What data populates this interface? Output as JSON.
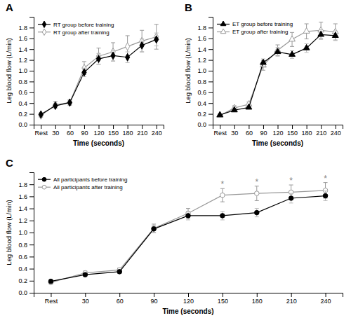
{
  "chart_data": [
    {
      "type": "line",
      "title": "A",
      "categories": [
        "Rest",
        "30",
        "60",
        "90",
        "120",
        "150",
        "180",
        "210",
        "240"
      ],
      "xlabel": "Time (seconds)",
      "ylabel": "Leg blood flow (L/min)",
      "ylim": [
        0.0,
        2.0
      ],
      "yticks": [
        {
          "value": 0,
          "label": "0.0"
        },
        0.2,
        0.4,
        0.6,
        0.8,
        {
          "value": 1,
          "label": "1.0"
        },
        1.2,
        1.4,
        1.6,
        1.8
      ],
      "grid": false,
      "legend": "upper left",
      "series": [
        {
          "name": "RT group before training",
          "color": "#000000",
          "marker": "diamond",
          "values": [
            0.19,
            0.35,
            0.41,
            0.97,
            1.22,
            1.28,
            1.25,
            1.47,
            1.58
          ],
          "errors": [
            0.03,
            0.04,
            0.04,
            0.08,
            0.1,
            0.1,
            0.1,
            0.12,
            0.12
          ]
        },
        {
          "name": "RT group after training",
          "color": "#999999",
          "marker": "diamond-open",
          "values": [
            0.17,
            0.37,
            0.41,
            1.05,
            1.27,
            1.35,
            1.45,
            1.55,
            1.63
          ],
          "errors": [
            0.03,
            0.06,
            0.05,
            0.12,
            0.15,
            0.17,
            0.2,
            0.2,
            0.23
          ]
        }
      ]
    },
    {
      "type": "line",
      "title": "B",
      "categories": [
        "Rest",
        "30",
        "60",
        "90",
        "120",
        "150",
        "180",
        "210",
        "240"
      ],
      "xlabel": "Time (seconds)",
      "ylabel": "Leg blood flow (L/min)",
      "ylim": [
        0.0,
        2.0
      ],
      "yticks": [
        {
          "value": 0,
          "label": "0.0"
        },
        0.2,
        0.4,
        0.6,
        0.8,
        {
          "value": 1,
          "label": "1.0"
        },
        1.2,
        1.4,
        1.6,
        1.8
      ],
      "grid": false,
      "legend": "upper left",
      "series": [
        {
          "name": "ET group before training",
          "color": "#000000",
          "marker": "triangle",
          "values": [
            0.18,
            0.27,
            0.32,
            1.15,
            1.35,
            1.3,
            1.42,
            1.67,
            1.65
          ],
          "errors": [
            0.02,
            0.03,
            0.03,
            0.07,
            0.08,
            0.07,
            0.08,
            0.09,
            0.09
          ]
        },
        {
          "name": "ET group after training",
          "color": "#999999",
          "marker": "triangle-open",
          "values": [
            0.17,
            0.31,
            0.38,
            1.1,
            1.38,
            1.58,
            1.73,
            1.75,
            1.72
          ],
          "errors": [
            0.02,
            0.04,
            0.04,
            0.09,
            0.1,
            0.13,
            0.14,
            0.15,
            0.15
          ]
        }
      ]
    },
    {
      "type": "line",
      "title": "C",
      "categories": [
        "Rest",
        "30",
        "60",
        "90",
        "120",
        "150",
        "180",
        "210",
        "240"
      ],
      "xlabel": "Time (seconds)",
      "ylabel": "Leg blood flow (L/min)",
      "ylim": [
        0.0,
        2.0
      ],
      "yticks": [
        {
          "value": 0,
          "label": "0.0"
        },
        0.2,
        0.4,
        0.6,
        0.8,
        {
          "value": 1,
          "label": "1.0"
        },
        1.2,
        1.4,
        1.6,
        1.8
      ],
      "grid": false,
      "legend": "upper left",
      "series": [
        {
          "name": "All participants before training",
          "color": "#000000",
          "marker": "circle",
          "values": [
            0.19,
            0.3,
            0.35,
            1.06,
            1.28,
            1.28,
            1.33,
            1.57,
            1.61
          ],
          "errors": [
            0.02,
            0.03,
            0.03,
            0.06,
            0.07,
            0.07,
            0.07,
            0.08,
            0.08
          ]
        },
        {
          "name": "All participants after training",
          "color": "#999999",
          "marker": "circle-open",
          "values": [
            0.17,
            0.33,
            0.38,
            1.07,
            1.32,
            1.62,
            1.65,
            1.67,
            1.7
          ],
          "errors": [
            0.02,
            0.03,
            0.03,
            0.07,
            0.08,
            0.11,
            0.12,
            0.12,
            0.13
          ]
        }
      ],
      "annotations": [
        {
          "text": "*",
          "x": "150"
        },
        {
          "text": "*",
          "x": "180"
        },
        {
          "text": "*",
          "x": "210"
        },
        {
          "text": "*",
          "x": "240"
        }
      ]
    }
  ]
}
